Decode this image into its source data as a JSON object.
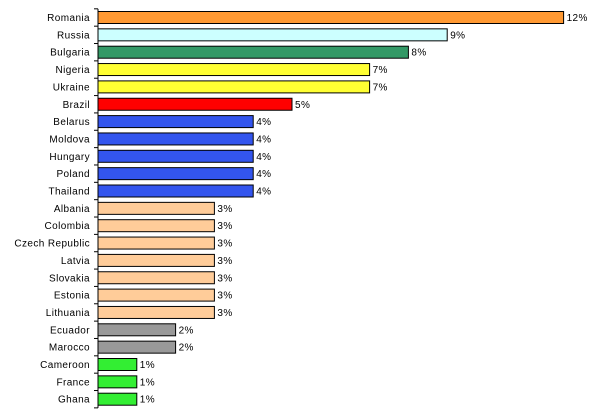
{
  "chart_data": {
    "type": "bar",
    "orientation": "horizontal",
    "title": "",
    "xlabel": "",
    "ylabel": "",
    "value_format": "percent",
    "xlim": [
      0,
      12
    ],
    "grid": false,
    "legend": "none",
    "categories": [
      "Romania",
      "Russia",
      "Bulgaria",
      "Nigeria",
      "Ukraine",
      "Brazil",
      "Belarus",
      "Moldova",
      "Hungary",
      "Poland",
      "Thailand",
      "Albania",
      "Colombia",
      "Czech Republic",
      "Latvia",
      "Slovakia",
      "Estonia",
      "Lithuania",
      "Ecuador",
      "Marocco",
      "Cameroon",
      "France",
      "Ghana"
    ],
    "values": [
      12,
      9,
      8,
      7,
      7,
      5,
      4,
      4,
      4,
      4,
      4,
      3,
      3,
      3,
      3,
      3,
      3,
      3,
      2,
      2,
      1,
      1,
      1
    ],
    "value_labels": [
      "12%",
      "9%",
      "8%",
      "7%",
      "7%",
      "5%",
      "4%",
      "4%",
      "4%",
      "4%",
      "4%",
      "3%",
      "3%",
      "3%",
      "3%",
      "3%",
      "3%",
      "3%",
      "2%",
      "2%",
      "1%",
      "1%",
      "1%"
    ],
    "colors": [
      "#ff9933",
      "#ccffff",
      "#339966",
      "#ffff33",
      "#ffff33",
      "#ff0000",
      "#3355ee",
      "#3355ee",
      "#3355ee",
      "#3355ee",
      "#3355ee",
      "#ffcc99",
      "#ffcc99",
      "#ffcc99",
      "#ffcc99",
      "#ffcc99",
      "#ffcc99",
      "#ffcc99",
      "#999999",
      "#999999",
      "#33ee33",
      "#33ee33",
      "#33ee33"
    ]
  }
}
